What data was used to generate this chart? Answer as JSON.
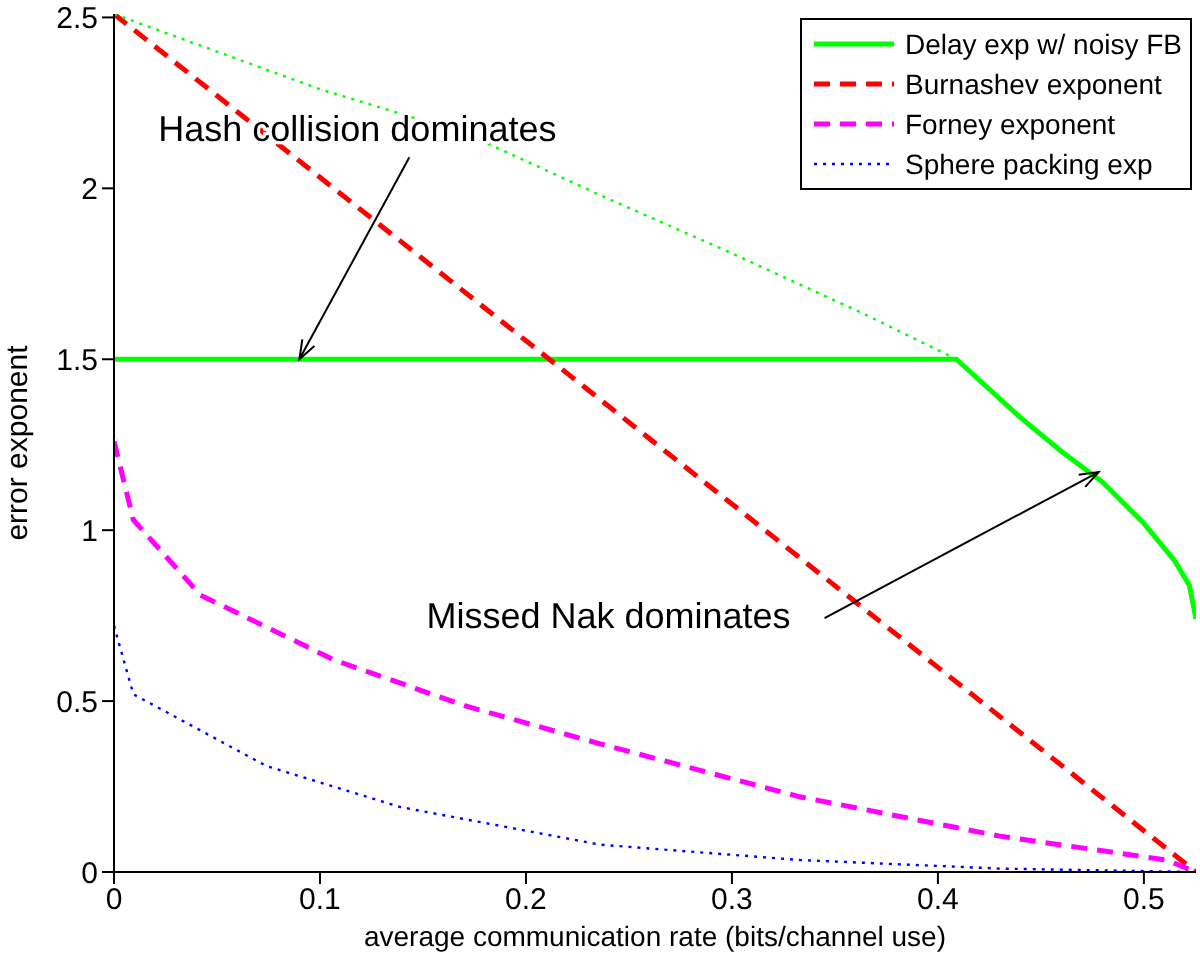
{
  "chart_data": {
    "type": "line",
    "xlabel": "average communication rate (bits/channel use)",
    "ylabel": "error exponent",
    "xlim": [
      0,
      0.5253
    ],
    "ylim": [
      0,
      2.51
    ],
    "xticks": [
      0,
      0.1,
      0.2,
      0.3,
      0.4,
      0.5
    ],
    "yticks": [
      0,
      0.5,
      1,
      1.5,
      2,
      2.5
    ],
    "grid": false,
    "legend": "top right",
    "marker": "none",
    "series": [
      {
        "name": "Delay exp w/ noisy FB",
        "color": "#00ff00",
        "line_style": "solid",
        "x": [
          0,
          0.409,
          0.44,
          0.46,
          0.48,
          0.5,
          0.515,
          0.522,
          0.5253
        ],
        "values": [
          1.5,
          1.5,
          1.33,
          1.23,
          1.14,
          1.02,
          0.91,
          0.84,
          0.74
        ]
      },
      {
        "name": "Burnashev exponent",
        "color": "#ff0000",
        "line_style": "dashed",
        "x": [
          0,
          0.5253
        ],
        "values": [
          2.51,
          0
        ]
      },
      {
        "name": "Forney exponent",
        "color": "#ff00ff",
        "line_style": "dashed",
        "x": [
          0,
          0.0094,
          0.042,
          0.107,
          0.171,
          0.236,
          0.333,
          0.43,
          0.511,
          0.5253
        ],
        "values": [
          1.26,
          1.03,
          0.81,
          0.62,
          0.485,
          0.375,
          0.22,
          0.105,
          0.035,
          0
        ]
      },
      {
        "name": "Sphere packing exp",
        "color": "#0000ff",
        "line_style": "dotted",
        "x": [
          0,
          0.0094,
          0.074,
          0.139,
          0.236,
          0.333,
          0.43,
          0.5253
        ],
        "values": [
          0.72,
          0.52,
          0.31,
          0.19,
          0.08,
          0.035,
          0.01,
          0
        ]
      },
      {
        "color": "#00ff00",
        "line_style": "dotted",
        "x": [
          0,
          0.05,
          0.1,
          0.171,
          0.236,
          0.3,
          0.365,
          0.409
        ],
        "values": [
          2.51,
          2.4,
          2.29,
          2.16,
          1.98,
          1.81,
          1.63,
          1.5
        ]
      }
    ],
    "annotations": [
      {
        "text": "Hash collision dominates",
        "x": 0.09,
        "y": 1.5
      },
      {
        "text": "Missed Nak dominates",
        "x": 0.478,
        "y": 1.17
      }
    ]
  }
}
